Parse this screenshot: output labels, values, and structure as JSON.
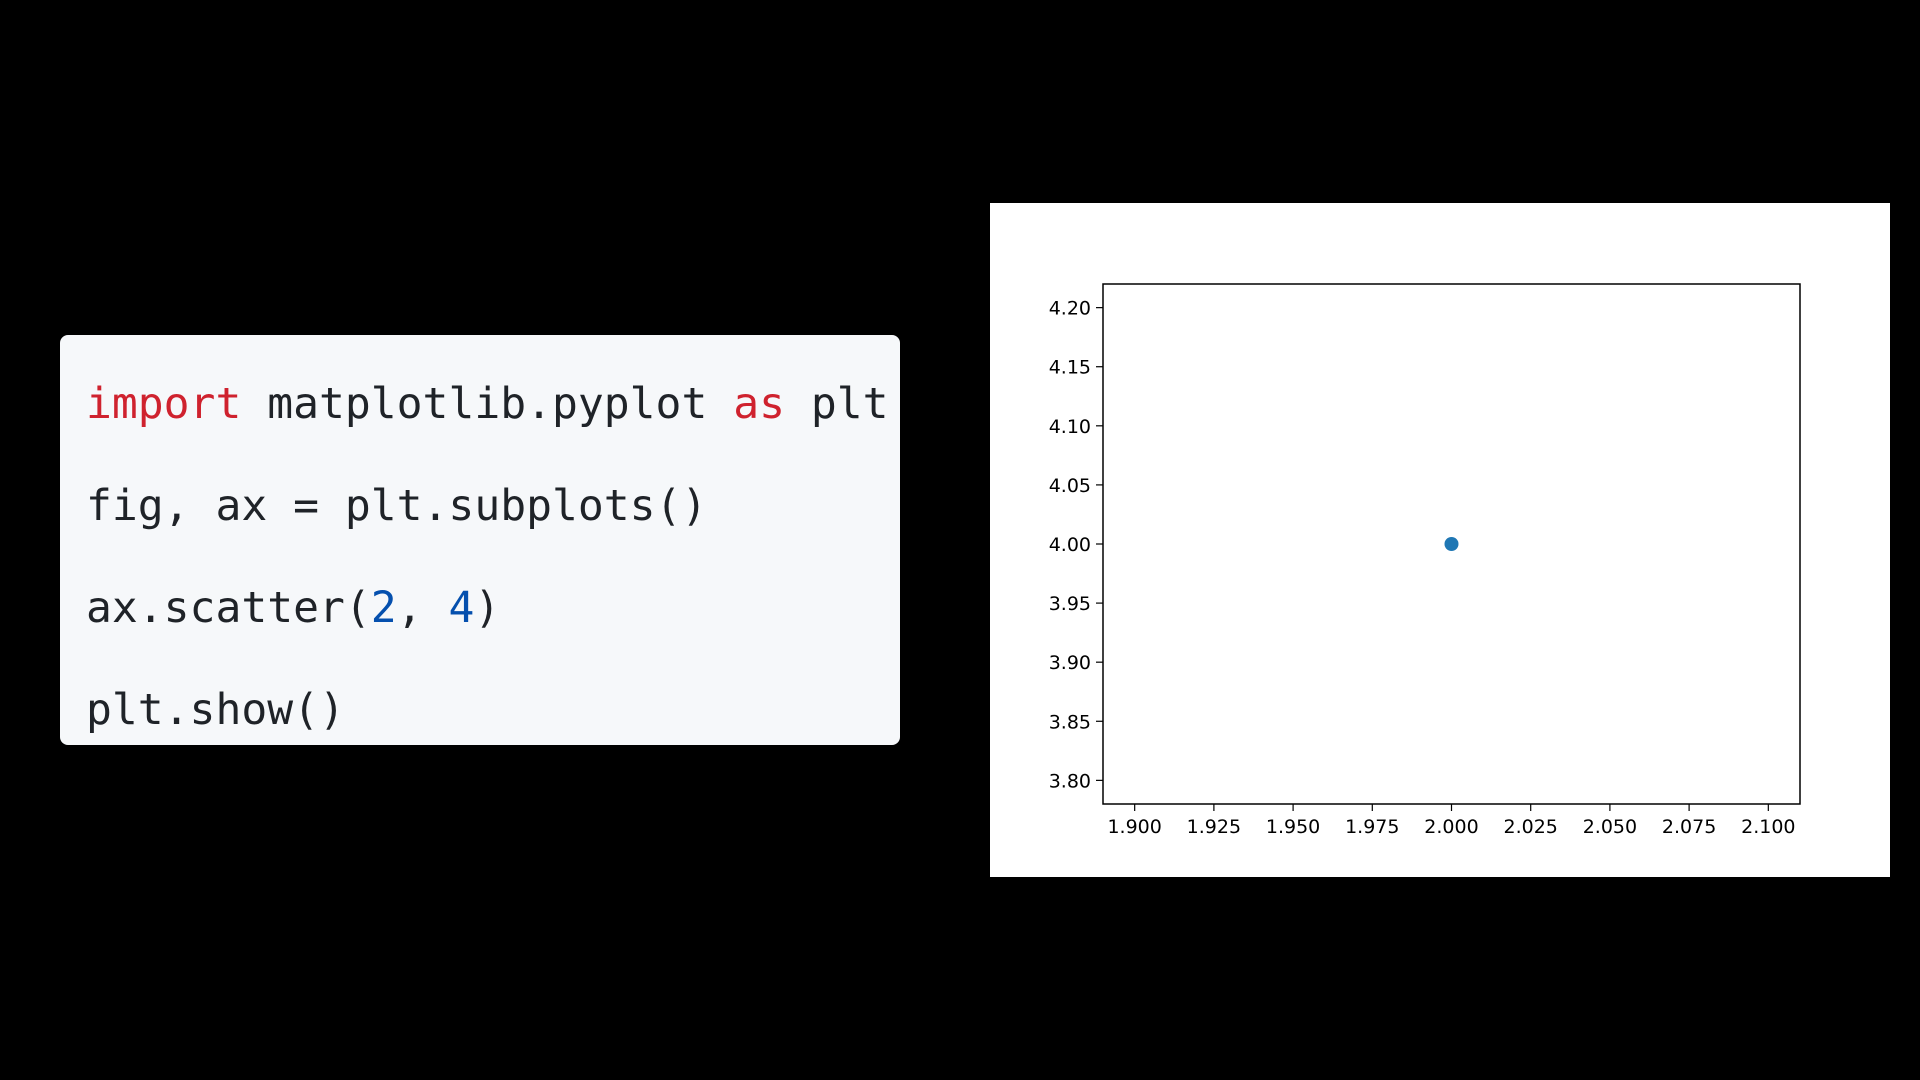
{
  "code": {
    "line1": {
      "kw_import": "import",
      "module": " matplotlib.pyplot ",
      "kw_as": "as",
      "alias": " plt"
    },
    "line2": {
      "text": "fig, ax = plt.subplots()"
    },
    "line3": {
      "prefix": "ax.scatter(",
      "arg1": "2",
      "sep": ", ",
      "arg2": "4",
      "suffix": ")"
    },
    "line4": {
      "text": "plt.show()"
    }
  },
  "colors": {
    "keyword": "#cf222e",
    "number": "#0550ae",
    "code_text": "#1f2328",
    "code_background": "#f6f8fa",
    "marker": "#1f77b4"
  },
  "chart_data": {
    "type": "scatter",
    "x": [
      2.0
    ],
    "y": [
      4.0
    ],
    "title": "",
    "xlabel": "",
    "ylabel": "",
    "xlim": [
      1.89,
      2.11
    ],
    "ylim": [
      3.78,
      4.22
    ],
    "xticks": [
      1.9,
      1.925,
      1.95,
      1.975,
      2.0,
      2.025,
      2.05,
      2.075,
      2.1
    ],
    "xtick_labels": [
      "1.900",
      "1.925",
      "1.950",
      "1.975",
      "2.000",
      "2.025",
      "2.050",
      "2.075",
      "2.100"
    ],
    "yticks": [
      3.8,
      3.85,
      3.9,
      3.95,
      4.0,
      4.05,
      4.1,
      4.15,
      4.2
    ],
    "ytick_labels": [
      "3.80",
      "3.85",
      "3.90",
      "3.95",
      "4.00",
      "4.05",
      "4.10",
      "4.15",
      "4.20"
    ],
    "grid": false,
    "legend": "none"
  }
}
